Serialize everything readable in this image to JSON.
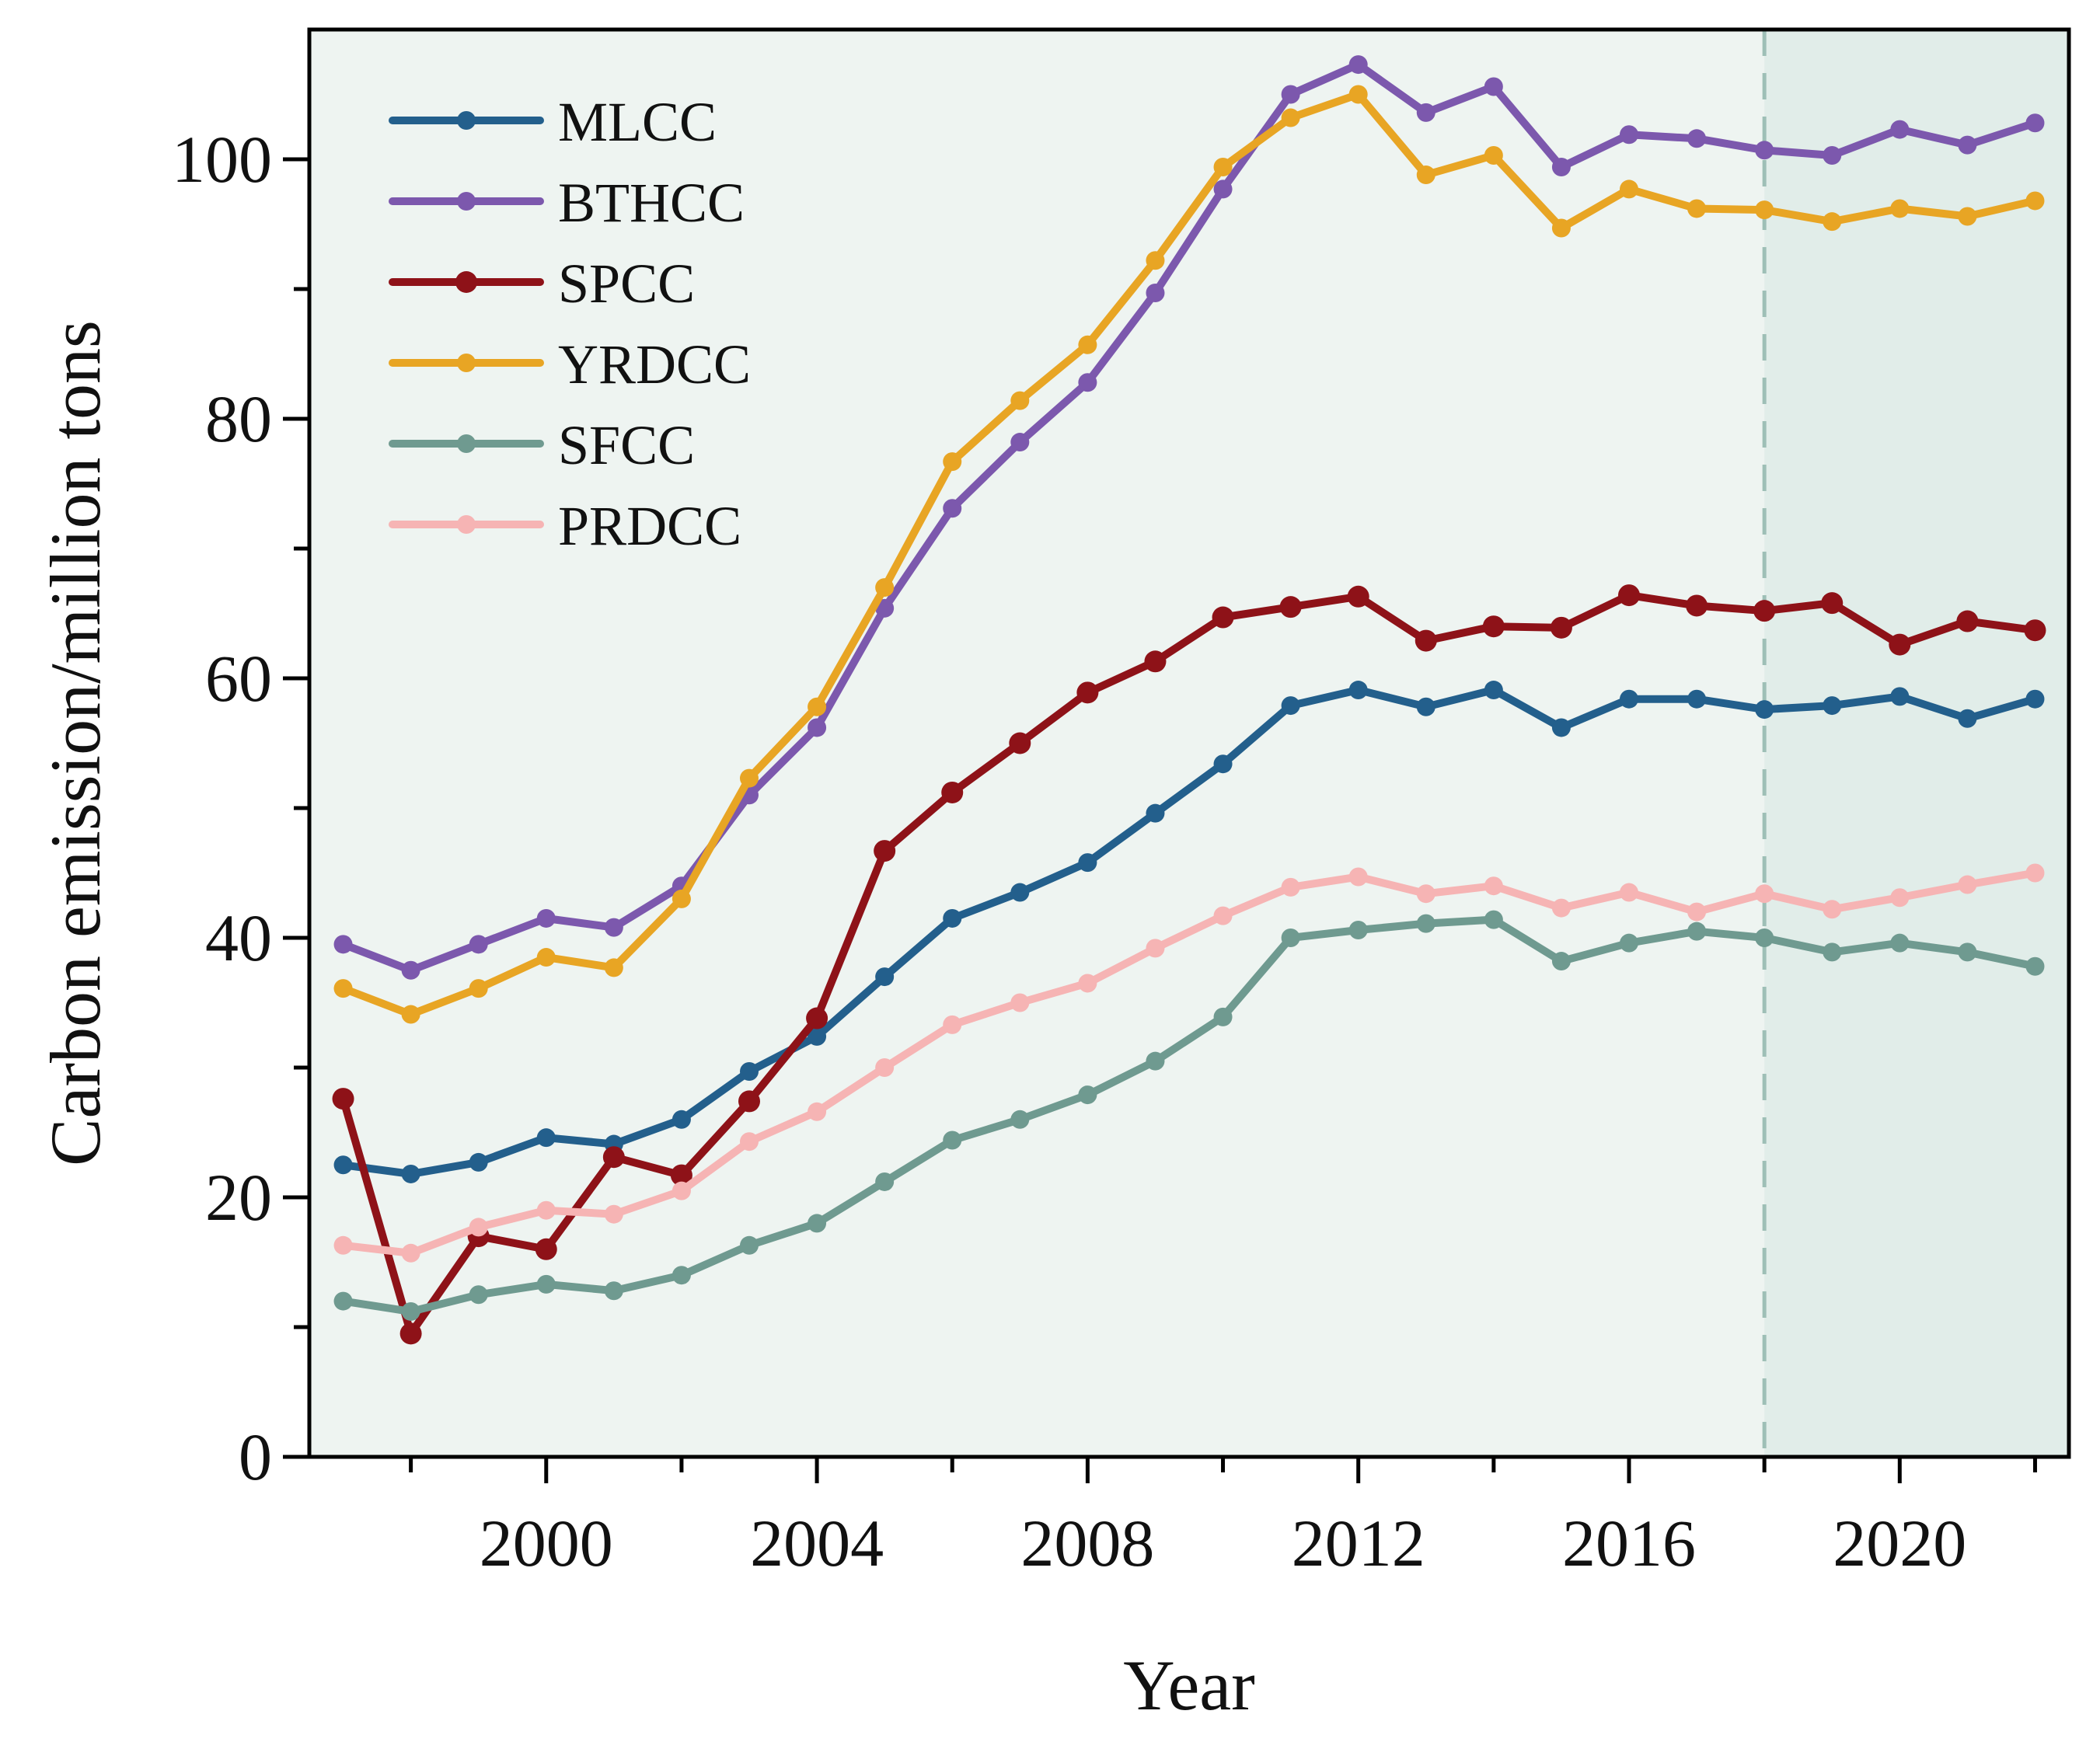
{
  "chart_data": {
    "type": "line",
    "title": "",
    "xlabel": "Year",
    "ylabel": "Carbon emission/million tons",
    "xlim": [
      1996.5,
      2022.5
    ],
    "ylim": [
      0,
      110
    ],
    "xticks": [
      2000,
      2004,
      2008,
      2012,
      2016,
      2020
    ],
    "yticks": [
      0,
      20,
      40,
      60,
      80,
      100
    ],
    "grid": false,
    "legend_position": "top-left",
    "forecast_start_year": 2018,
    "colors": {
      "background": "#eef4f1",
      "forecast_region": "#e1ede9",
      "divider": "#9ebfb6"
    },
    "x": [
      1997,
      1998,
      1999,
      2000,
      2001,
      2002,
      2003,
      2004,
      2005,
      2006,
      2007,
      2008,
      2009,
      2010,
      2011,
      2012,
      2013,
      2014,
      2015,
      2016,
      2017,
      2018,
      2019,
      2020,
      2021,
      2022
    ],
    "series": [
      {
        "name": "MLCC",
        "color": "#235f8c",
        "marker_size": "small",
        "values": [
          22.5,
          21.8,
          22.7,
          24.6,
          24.1,
          26.0,
          29.7,
          32.4,
          37.0,
          41.5,
          43.5,
          45.8,
          49.6,
          53.4,
          57.9,
          59.1,
          57.8,
          59.1,
          56.2,
          58.4,
          58.4,
          57.6,
          57.9,
          58.6,
          56.9,
          58.4
        ]
      },
      {
        "name": "BTHCC",
        "color": "#7c58ad",
        "marker_size": "small",
        "values": [
          39.5,
          37.5,
          39.5,
          41.5,
          40.8,
          44.0,
          51.0,
          56.2,
          65.4,
          73.1,
          78.2,
          82.8,
          89.7,
          97.7,
          105.0,
          107.3,
          103.6,
          105.6,
          99.4,
          101.9,
          101.6,
          100.7,
          100.3,
          102.3,
          101.1,
          102.8
        ]
      },
      {
        "name": "SPCC",
        "color": "#8e1218",
        "marker_size": "large",
        "values": [
          27.6,
          9.5,
          17.0,
          16.0,
          23.1,
          21.7,
          27.4,
          33.8,
          46.7,
          51.2,
          55.0,
          58.9,
          61.3,
          64.7,
          65.5,
          66.3,
          62.9,
          64.0,
          63.9,
          66.4,
          65.6,
          65.2,
          65.8,
          62.6,
          64.4,
          63.7
        ]
      },
      {
        "name": "YRDCC",
        "color": "#e8a524",
        "marker_size": "small",
        "values": [
          36.1,
          34.1,
          36.1,
          38.5,
          37.7,
          43.0,
          52.3,
          57.8,
          67.0,
          76.7,
          81.4,
          85.7,
          92.2,
          99.4,
          103.2,
          105.0,
          98.8,
          100.3,
          94.7,
          97.7,
          96.2,
          96.1,
          95.2,
          96.2,
          95.6,
          96.8
        ]
      },
      {
        "name": "SFCC",
        "color": "#6f9a90",
        "marker_size": "small",
        "values": [
          12.0,
          11.2,
          12.5,
          13.3,
          12.8,
          14.0,
          16.3,
          18.0,
          21.2,
          24.4,
          26.0,
          27.9,
          30.5,
          33.9,
          40.0,
          40.6,
          41.1,
          41.4,
          38.2,
          39.6,
          40.5,
          40.0,
          38.9,
          39.6,
          38.9,
          37.8
        ]
      },
      {
        "name": "PRDCC",
        "color": "#f6b4b4",
        "marker_size": "small",
        "values": [
          16.3,
          15.7,
          17.7,
          19.0,
          18.7,
          20.5,
          24.3,
          26.6,
          30.0,
          33.3,
          35.0,
          36.5,
          39.2,
          41.7,
          43.9,
          44.7,
          43.4,
          44.0,
          42.3,
          43.5,
          42.0,
          43.4,
          42.2,
          43.1,
          44.1,
          45.0
        ]
      }
    ]
  }
}
